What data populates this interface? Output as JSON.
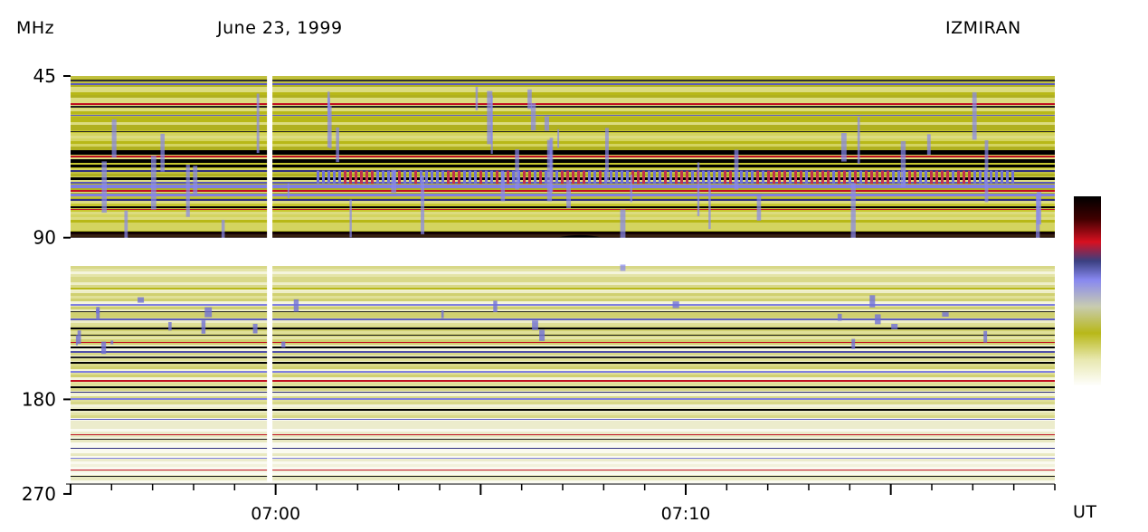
{
  "header": {
    "unit": "MHz",
    "date": "June 23, 1999",
    "observatory": "IZMIRAN",
    "x_unit": "UT"
  },
  "chart_data": {
    "type": "heatmap",
    "title": "June 23, 1999",
    "xlabel": "UT",
    "ylabel": "MHz",
    "y_scale": "log",
    "y_ticks": [
      45,
      90,
      180,
      270
    ],
    "y_tick_labels": [
      "45",
      "90",
      "180",
      "270"
    ],
    "y_range": [
      45,
      270
    ],
    "x_range": [
      "06:55",
      "07:19"
    ],
    "x_ticks_major": [
      "07:00",
      "07:10"
    ],
    "x_tick_labels": [
      "07:00",
      "07:10"
    ],
    "x_minor_tick_step_min": 1,
    "colorbar": {
      "colors": [
        "#ffffff",
        "#d8d890",
        "#b8b818",
        "#c0c8a0",
        "#8888f0",
        "#4444a8",
        "#d81020",
        "#000000"
      ]
    },
    "features": [
      {
        "type": "data-gap",
        "time": "06:59:50",
        "freq_range": [
          45,
          270
        ]
      },
      {
        "type": "band-gap",
        "freq_range": [
          90,
          101
        ]
      },
      {
        "type": "interference-band",
        "freq_range": [
          88,
          94
        ]
      },
      {
        "type": "burst-patch",
        "time_range": [
          "07:06:40",
          "07:08:10"
        ],
        "freq_range": [
          90,
          93
        ]
      },
      {
        "type": "modulated-band",
        "time_range": [
          "07:01",
          "07:18"
        ],
        "freq_range": [
          67,
          72
        ]
      }
    ]
  }
}
